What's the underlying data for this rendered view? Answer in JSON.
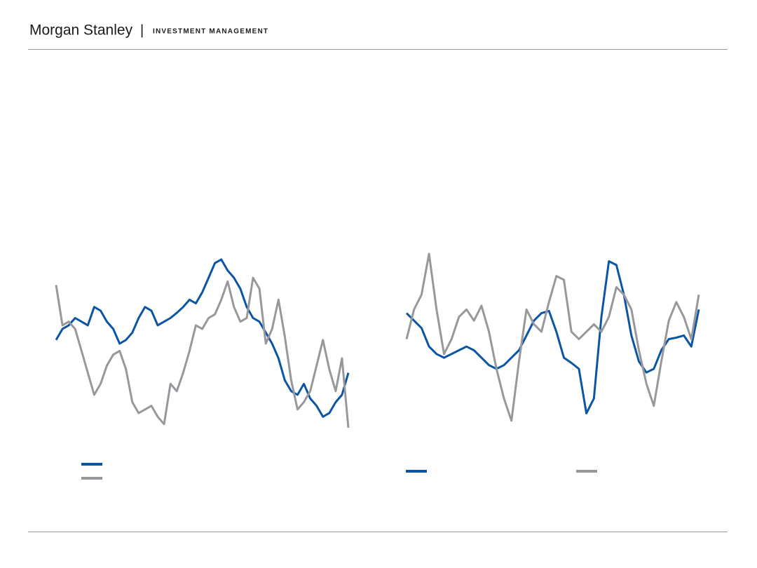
{
  "header": {
    "brand": "Morgan Stanley",
    "separator": "|",
    "division": "INVESTMENT MANAGEMENT"
  },
  "chart_data": [
    {
      "type": "line",
      "series": [
        {
          "color": "#0b56a4",
          "values": [
            135,
            150,
            155,
            165,
            160,
            155,
            180,
            175,
            160,
            150,
            130,
            135,
            145,
            165,
            180,
            175,
            155,
            160,
            165,
            172,
            180,
            190,
            185,
            200,
            220,
            240,
            245,
            230,
            220,
            205,
            180,
            165,
            160,
            145,
            130,
            110,
            80,
            65,
            60,
            75,
            55,
            45,
            30,
            35,
            50,
            60,
            90
          ]
        },
        {
          "color": "#98989c",
          "values": [
            210,
            155,
            160,
            150,
            120,
            90,
            60,
            75,
            100,
            115,
            120,
            95,
            50,
            35,
            40,
            45,
            30,
            20,
            75,
            65,
            90,
            120,
            155,
            150,
            165,
            170,
            190,
            215,
            180,
            160,
            165,
            220,
            205,
            130,
            150,
            190,
            140,
            80,
            40,
            50,
            65,
            100,
            135,
            95,
            65,
            110,
            15
          ]
        }
      ]
    },
    {
      "type": "line",
      "series": [
        {
          "color": "#0b56a4",
          "values": [
            175,
            165,
            155,
            130,
            120,
            115,
            120,
            125,
            130,
            125,
            115,
            105,
            100,
            105,
            115,
            125,
            145,
            165,
            175,
            178,
            150,
            115,
            108,
            100,
            40,
            60,
            170,
            245,
            240,
            200,
            145,
            110,
            95,
            100,
            125,
            140,
            142,
            145,
            130,
            180
          ]
        },
        {
          "color": "#98989c",
          "values": [
            140,
            180,
            200,
            255,
            180,
            120,
            140,
            170,
            180,
            165,
            185,
            150,
            100,
            60,
            30,
            110,
            180,
            160,
            150,
            190,
            225,
            220,
            150,
            140,
            150,
            160,
            150,
            170,
            210,
            200,
            180,
            125,
            80,
            50,
            110,
            165,
            190,
            170,
            140,
            200
          ]
        }
      ]
    }
  ]
}
